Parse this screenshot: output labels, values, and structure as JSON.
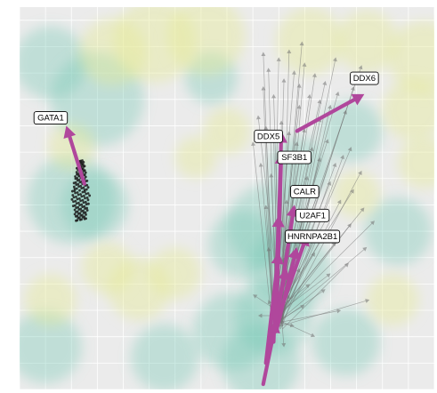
{
  "chart_data": {
    "type": "scatter",
    "title": "",
    "xlabel": "",
    "ylabel": "",
    "xlim": [
      0,
      16
    ],
    "ylim": [
      0,
      14.5
    ],
    "grid": true,
    "legend": "none",
    "colors": {
      "panel": "#ebebeb",
      "grid": "#ffffff",
      "teal_cloud": "#74c8b4",
      "yellow_cloud": "#e4e993",
      "highlight_arrow": "#b0479c",
      "background_arrow": "#6f6f6f",
      "label_border": "#000000"
    },
    "density_clouds": [
      {
        "x": 1.2,
        "y": 12.4,
        "r": 1.4,
        "tone": "teal"
      },
      {
        "x": 3.0,
        "y": 11.0,
        "r": 1.8,
        "tone": "teal"
      },
      {
        "x": 2.0,
        "y": 7.2,
        "r": 1.7,
        "tone": "teal"
      },
      {
        "x": 2.9,
        "y": 7.0,
        "r": 1.3,
        "tone": "teal"
      },
      {
        "x": 9.6,
        "y": 6.2,
        "r": 1.6,
        "tone": "teal"
      },
      {
        "x": 8.6,
        "y": 5.5,
        "r": 1.3,
        "tone": "teal"
      },
      {
        "x": 10.4,
        "y": 4.5,
        "r": 1.6,
        "tone": "teal"
      },
      {
        "x": 9.8,
        "y": 2.8,
        "r": 1.5,
        "tone": "teal"
      },
      {
        "x": 8.2,
        "y": 2.2,
        "r": 1.5,
        "tone": "teal"
      },
      {
        "x": 9.3,
        "y": 1.0,
        "r": 1.5,
        "tone": "teal"
      },
      {
        "x": 12.6,
        "y": 1.8,
        "r": 1.3,
        "tone": "teal"
      },
      {
        "x": 12.8,
        "y": 9.8,
        "r": 1.2,
        "tone": "teal"
      },
      {
        "x": 10.8,
        "y": 8.4,
        "r": 1.2,
        "tone": "teal"
      },
      {
        "x": 14.6,
        "y": 6.0,
        "r": 1.3,
        "tone": "teal"
      },
      {
        "x": 1.0,
        "y": 1.6,
        "r": 1.4,
        "tone": "teal"
      },
      {
        "x": 5.6,
        "y": 1.2,
        "r": 1.3,
        "tone": "teal"
      },
      {
        "x": 7.4,
        "y": 11.8,
        "r": 1.0,
        "tone": "teal"
      },
      {
        "x": 5.2,
        "y": 13.2,
        "r": 1.6,
        "tone": "yellow"
      },
      {
        "x": 7.2,
        "y": 13.4,
        "r": 1.5,
        "tone": "yellow"
      },
      {
        "x": 3.6,
        "y": 12.8,
        "r": 1.3,
        "tone": "yellow"
      },
      {
        "x": 11.2,
        "y": 13.2,
        "r": 1.3,
        "tone": "yellow"
      },
      {
        "x": 13.4,
        "y": 13.2,
        "r": 1.2,
        "tone": "yellow"
      },
      {
        "x": 15.6,
        "y": 12.6,
        "r": 1.4,
        "tone": "yellow"
      },
      {
        "x": 15.2,
        "y": 10.6,
        "r": 1.2,
        "tone": "yellow"
      },
      {
        "x": 4.6,
        "y": 3.8,
        "r": 1.2,
        "tone": "yellow"
      },
      {
        "x": 3.4,
        "y": 4.6,
        "r": 1.0,
        "tone": "yellow"
      },
      {
        "x": 6.0,
        "y": 4.4,
        "r": 1.0,
        "tone": "yellow"
      },
      {
        "x": 1.2,
        "y": 3.4,
        "r": 1.0,
        "tone": "yellow"
      },
      {
        "x": 14.4,
        "y": 3.4,
        "r": 1.0,
        "tone": "yellow"
      },
      {
        "x": 2.0,
        "y": 9.2,
        "r": 0.9,
        "tone": "yellow"
      },
      {
        "x": 13.0,
        "y": 7.4,
        "r": 0.9,
        "tone": "yellow"
      },
      {
        "x": 15.6,
        "y": 8.6,
        "r": 1.0,
        "tone": "yellow"
      },
      {
        "x": 6.8,
        "y": 8.8,
        "r": 0.8,
        "tone": "yellow"
      },
      {
        "x": 8.0,
        "y": 9.8,
        "r": 0.9,
        "tone": "yellow"
      }
    ],
    "background_arrow_origin": {
      "x": 9.95,
      "y": 2.6
    },
    "background_arrow_tips": [
      [
        9.4,
        11.5
      ],
      [
        9.6,
        12.2
      ],
      [
        9.8,
        11.2
      ],
      [
        10.0,
        12.6
      ],
      [
        10.2,
        11.8
      ],
      [
        10.4,
        12.9
      ],
      [
        10.6,
        12.1
      ],
      [
        10.8,
        11.6
      ],
      [
        11.0,
        12.4
      ],
      [
        11.2,
        11.2
      ],
      [
        11.4,
        12.0
      ],
      [
        11.6,
        11.0
      ],
      [
        11.8,
        11.7
      ],
      [
        12.0,
        10.8
      ],
      [
        12.3,
        11.3
      ],
      [
        12.6,
        10.6
      ],
      [
        9.2,
        10.4
      ],
      [
        9.5,
        10.0
      ],
      [
        9.8,
        9.6
      ],
      [
        10.1,
        10.2
      ],
      [
        10.4,
        9.8
      ],
      [
        10.7,
        9.4
      ],
      [
        11.0,
        9.9
      ],
      [
        11.3,
        9.2
      ],
      [
        11.6,
        8.8
      ],
      [
        11.9,
        9.5
      ],
      [
        12.2,
        8.6
      ],
      [
        12.5,
        8.9
      ],
      [
        9.3,
        8.6
      ],
      [
        9.7,
        8.2
      ],
      [
        10.2,
        8.8
      ],
      [
        10.6,
        7.6
      ],
      [
        11.1,
        8.1
      ],
      [
        11.5,
        7.4
      ],
      [
        12.0,
        7.9
      ],
      [
        12.4,
        7.2
      ],
      [
        12.9,
        7.6
      ],
      [
        13.3,
        6.9
      ],
      [
        13.7,
        6.4
      ],
      [
        9.5,
        7.0
      ],
      [
        10.0,
        6.6
      ],
      [
        10.5,
        6.2
      ],
      [
        11.0,
        6.8
      ],
      [
        11.6,
        6.0
      ],
      [
        12.2,
        5.6
      ],
      [
        12.8,
        6.3
      ],
      [
        13.4,
        5.4
      ],
      [
        9.6,
        5.4
      ],
      [
        10.2,
        5.0
      ],
      [
        10.8,
        4.6
      ],
      [
        11.4,
        5.2
      ],
      [
        12.0,
        4.4
      ],
      [
        12.7,
        4.8
      ],
      [
        13.5,
        3.4
      ],
      [
        10.4,
        3.6
      ],
      [
        11.0,
        3.2
      ],
      [
        11.8,
        3.8
      ],
      [
        12.4,
        3.0
      ],
      [
        10.6,
        2.4
      ],
      [
        11.4,
        2.0
      ],
      [
        10.2,
        1.6
      ],
      [
        9.6,
        3.4
      ],
      [
        9.2,
        2.8
      ],
      [
        9.0,
        3.6
      ],
      [
        10.8,
        10.8
      ],
      [
        11.6,
        10.3
      ],
      [
        9.0,
        9.4
      ],
      [
        12.8,
        9.2
      ],
      [
        13.2,
        8.3
      ],
      [
        9.4,
        12.8
      ],
      [
        10.9,
        13.2
      ],
      [
        12.2,
        12.6
      ],
      [
        13.2,
        12.3
      ],
      [
        12.9,
        11.5
      ],
      [
        10.3,
        7.2
      ],
      [
        11.9,
        6.6
      ],
      [
        9.9,
        4.2
      ],
      [
        11.2,
        4.0
      ]
    ],
    "gata1_cluster": {
      "x0": 2.0,
      "x1": 2.75,
      "y0": 6.4,
      "y1": 8.7
    },
    "highlighted_genes": [
      {
        "name": "GATA1",
        "x0": 2.5,
        "y0": 7.8,
        "x1": 1.8,
        "y1": 10.0,
        "lx": 1.2,
        "ly": 10.3
      },
      {
        "name": "DDX6",
        "x0": 10.7,
        "y0": 9.8,
        "x1": 13.3,
        "y1": 11.2,
        "lx": 13.3,
        "ly": 11.8
      },
      {
        "name": "DDX5",
        "x0": 9.9,
        "y0": 2.5,
        "x1": 10.1,
        "y1": 9.8,
        "lx": 9.6,
        "ly": 9.6
      },
      {
        "name": "SF3B1",
        "x0": 9.9,
        "y0": 2.5,
        "x1": 10.1,
        "y1": 9.0,
        "lx": 10.6,
        "ly": 8.8
      },
      {
        "name": "CALR",
        "x0": 9.9,
        "y0": 2.5,
        "x1": 10.6,
        "y1": 7.0,
        "lx": 11.0,
        "ly": 7.5
      },
      {
        "name": "U2AF1",
        "x0": 9.9,
        "y0": 2.5,
        "x1": 11.1,
        "y1": 5.9,
        "lx": 11.3,
        "ly": 6.6
      },
      {
        "name": "HNRNPA2B1",
        "x0": 9.5,
        "y0": 1.0,
        "x1": 10.0,
        "y1": 5.2,
        "lx": 11.3,
        "ly": 5.8
      },
      {
        "name": "",
        "x0": 9.8,
        "y0": 1.8,
        "x1": 10.0,
        "y1": 6.6,
        "lx": null,
        "ly": null
      },
      {
        "name": "",
        "x0": 9.6,
        "y0": 1.4,
        "x1": 10.3,
        "y1": 4.6,
        "lx": null,
        "ly": null
      },
      {
        "name": "",
        "x0": 9.9,
        "y0": 2.2,
        "x1": 10.7,
        "y1": 5.4,
        "lx": null,
        "ly": null
      },
      {
        "name": "",
        "x0": 9.4,
        "y0": 0.2,
        "x1": 9.9,
        "y1": 2.6,
        "lx": null,
        "ly": null
      }
    ]
  }
}
